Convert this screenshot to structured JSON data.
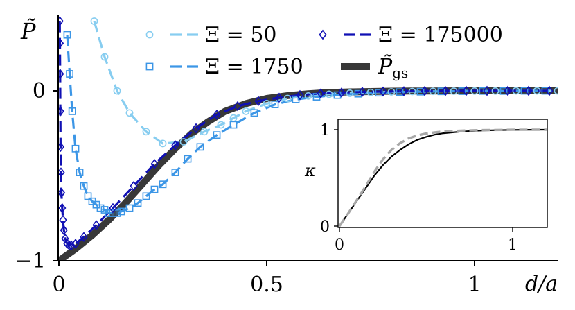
{
  "chart_data": [
    {
      "type": "line",
      "ylabel": "P̃",
      "xlabel": "d/a",
      "xlim": [
        0,
        1.2
      ],
      "ylim": [
        -1,
        0.45
      ],
      "x_ticks": [
        0,
        0.5,
        1
      ],
      "x_tick_labels": [
        "0",
        "0.5",
        "1"
      ],
      "y_ticks": [
        0,
        -1
      ],
      "y_tick_labels": [
        "0",
        "−1"
      ],
      "grid": false,
      "legend_placement": "top",
      "series": [
        {
          "name": "Ξ = 50",
          "label_symbol": "Ξ",
          "label_value": "50",
          "color": "#87cdf0",
          "marker": "circle",
          "line": "dashed",
          "x": [
            0.085,
            0.11,
            0.14,
            0.17,
            0.21,
            0.25,
            0.3,
            0.35,
            0.39,
            0.42,
            0.45,
            0.5,
            0.55,
            0.6,
            0.65,
            0.7,
            0.75,
            0.8,
            0.85,
            0.9,
            0.95,
            1.0,
            1.05,
            1.1,
            1.15,
            1.2
          ],
          "y": [
            0.41,
            0.2,
            0.0,
            -0.13,
            -0.24,
            -0.31,
            -0.3,
            -0.24,
            -0.2,
            -0.16,
            -0.12,
            -0.075,
            -0.045,
            -0.03,
            -0.02,
            -0.014,
            -0.009,
            -0.006,
            -0.004,
            -0.003,
            -0.002,
            -0.001,
            -0.001,
            0.0,
            0.0,
            0.0
          ]
        },
        {
          "name": "Ξ = 1750",
          "label_symbol": "Ξ",
          "label_value": "1750",
          "color": "#3c96e6",
          "marker": "square",
          "line": "dashed",
          "x": [
            0.02,
            0.026,
            0.032,
            0.04,
            0.05,
            0.06,
            0.07,
            0.08,
            0.09,
            0.1,
            0.11,
            0.12,
            0.13,
            0.14,
            0.15,
            0.17,
            0.19,
            0.21,
            0.23,
            0.25,
            0.28,
            0.31,
            0.34,
            0.38,
            0.42,
            0.47,
            0.52,
            0.57,
            0.62,
            0.67,
            0.72,
            0.77,
            0.82,
            0.87,
            0.92,
            0.97,
            1.02,
            1.07,
            1.12,
            1.17
          ],
          "y": [
            0.33,
            0.1,
            -0.12,
            -0.34,
            -0.48,
            -0.56,
            -0.62,
            -0.65,
            -0.67,
            -0.69,
            -0.7,
            -0.72,
            -0.72,
            -0.72,
            -0.71,
            -0.69,
            -0.66,
            -0.62,
            -0.58,
            -0.55,
            -0.48,
            -0.4,
            -0.33,
            -0.26,
            -0.2,
            -0.13,
            -0.08,
            -0.05,
            -0.035,
            -0.025,
            -0.017,
            -0.011,
            -0.007,
            -0.005,
            -0.003,
            -0.002,
            -0.001,
            -0.001,
            0.0,
            0.0
          ]
        },
        {
          "name": "Ξ = 175000",
          "label_symbol": "Ξ",
          "label_value": "175000",
          "color": "#1010b4",
          "marker": "diamond",
          "line": "dashed",
          "x": [
            0.002,
            0.0025,
            0.003,
            0.0035,
            0.004,
            0.005,
            0.006,
            0.008,
            0.01,
            0.012,
            0.015,
            0.02,
            0.025,
            0.03,
            0.04,
            0.06,
            0.09,
            0.13,
            0.18,
            0.23,
            0.28,
            0.33,
            0.38,
            0.43,
            0.48,
            0.53,
            0.58,
            0.63,
            0.68,
            0.73,
            0.78,
            0.83,
            0.88,
            0.93,
            0.98,
            1.03,
            1.08,
            1.13,
            1.18
          ],
          "y": [
            0.41,
            0.28,
            0.1,
            -0.12,
            -0.33,
            -0.48,
            -0.6,
            -0.69,
            -0.76,
            -0.82,
            -0.87,
            -0.9,
            -0.91,
            -0.91,
            -0.9,
            -0.86,
            -0.79,
            -0.69,
            -0.56,
            -0.43,
            -0.32,
            -0.22,
            -0.14,
            -0.09,
            -0.06,
            -0.04,
            -0.025,
            -0.015,
            -0.01,
            -0.006,
            -0.004,
            -0.002,
            -0.001,
            -0.001,
            0.0,
            0.0,
            0.0,
            0.0,
            0.0
          ]
        },
        {
          "name": "P̃gs",
          "label_symbol": "P̃",
          "label_value": "gs",
          "color": "#383838",
          "marker": "none",
          "line": "solid",
          "x": [
            0.0,
            0.04,
            0.08,
            0.12,
            0.16,
            0.2,
            0.24,
            0.28,
            0.32,
            0.36,
            0.4,
            0.45,
            0.5,
            0.55,
            0.6,
            0.65,
            0.7,
            0.75,
            0.8,
            0.85,
            0.9,
            1.0,
            1.1,
            1.2
          ],
          "y": [
            -1.0,
            -0.93,
            -0.85,
            -0.76,
            -0.66,
            -0.55,
            -0.44,
            -0.34,
            -0.25,
            -0.18,
            -0.12,
            -0.075,
            -0.045,
            -0.028,
            -0.017,
            -0.01,
            -0.006,
            -0.004,
            -0.002,
            -0.001,
            -0.001,
            0.0,
            0.0,
            0.0
          ]
        }
      ]
    },
    {
      "type": "line",
      "ylabel": "κ",
      "xlabel": "",
      "xlim": [
        0,
        1.2
      ],
      "ylim": [
        0,
        1
      ],
      "x_ticks": [
        0,
        1
      ],
      "x_tick_labels": [
        "0",
        "1"
      ],
      "y_ticks": [
        0,
        1
      ],
      "y_tick_labels": [
        "0",
        "1"
      ],
      "grid": false,
      "series": [
        {
          "color": "#000000",
          "line": "solid",
          "x": [
            0.0,
            0.05,
            0.1,
            0.15,
            0.2,
            0.25,
            0.3,
            0.35,
            0.4,
            0.45,
            0.5,
            0.55,
            0.6,
            0.7,
            0.8,
            0.9,
            1.0,
            1.1,
            1.2
          ],
          "y": [
            0.0,
            0.13,
            0.26,
            0.39,
            0.52,
            0.63,
            0.72,
            0.79,
            0.85,
            0.895,
            0.925,
            0.948,
            0.963,
            0.98,
            0.99,
            0.995,
            0.998,
            0.999,
            1.0
          ]
        },
        {
          "color": "#a8a8a8",
          "line": "dashed",
          "x": [
            0.0,
            0.05,
            0.1,
            0.15,
            0.2,
            0.25,
            0.3,
            0.35,
            0.4,
            0.45,
            0.5,
            0.55,
            0.6,
            0.7,
            0.8,
            0.9,
            1.0,
            1.1,
            1.2
          ],
          "y": [
            0.0,
            0.13,
            0.27,
            0.41,
            0.56,
            0.69,
            0.79,
            0.86,
            0.91,
            0.94,
            0.96,
            0.972,
            0.981,
            0.99,
            0.995,
            0.997,
            0.999,
            1.0,
            1.0
          ]
        }
      ]
    }
  ]
}
